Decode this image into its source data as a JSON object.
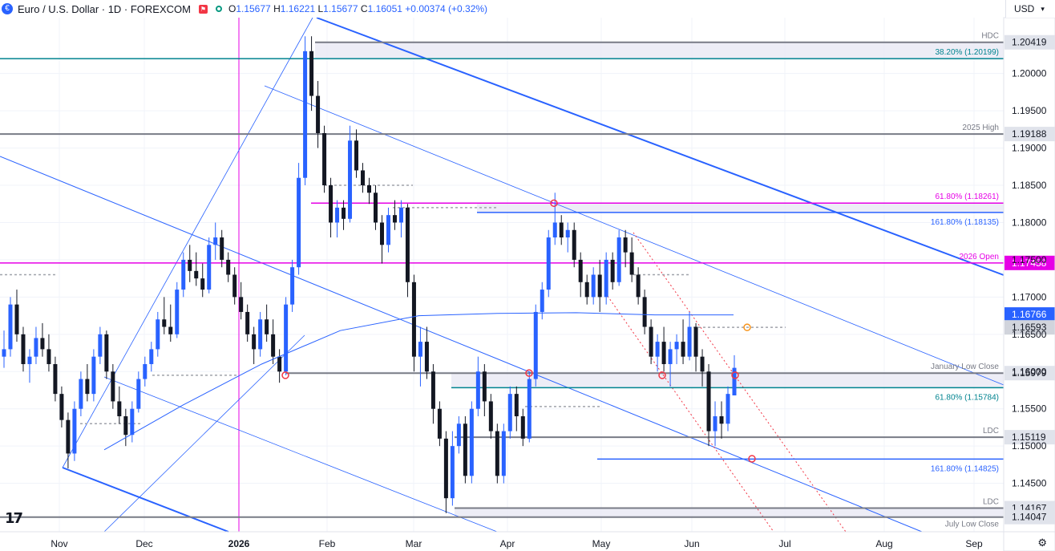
{
  "header": {
    "symbol_icon": "euro-flag-icon",
    "title": "Euro / U.S. Dollar · 1D · FOREXCOM",
    "ohlc": {
      "o_label": "O",
      "o": "1.15677",
      "h_label": "H",
      "h": "1.16221",
      "l_label": "L",
      "l": "1.15677",
      "c_label": "C",
      "c": "1.16051",
      "change": "+0.00374 (+0.32%)"
    }
  },
  "currency": "USD",
  "footer": {
    "settings_icon": "gear-icon"
  },
  "colors": {
    "up": "#2962ff",
    "down": "#131722",
    "magenta": "#e600e6",
    "teal": "#00838f",
    "blue": "#2962ff",
    "gray": "#787b86",
    "orange": "#f7931a",
    "red": "#f23645",
    "zone_fill": "#e8e8f4"
  },
  "chart_data": {
    "type": "candlestick",
    "ylim": [
      1.1385,
      1.2075
    ],
    "x_ticks": [
      "Nov",
      "Dec",
      "2026",
      "Feb",
      "Mar",
      "Apr",
      "May",
      "Jun",
      "Jul",
      "Aug",
      "Sep"
    ],
    "y_ticks": [
      "1.14500",
      "1.15000",
      "1.15500",
      "1.16000",
      "1.16500",
      "1.17000",
      "1.17500",
      "1.18000",
      "1.18500",
      "1.19000",
      "1.19500",
      "1.20000"
    ],
    "levels": [
      {
        "label": "HDC",
        "value": 1.20419,
        "price": "1.20419",
        "style": "gray"
      },
      {
        "label": "38.20% (1.20199)",
        "value": 1.20199,
        "price": "",
        "style": "teal"
      },
      {
        "label": "2025 High",
        "value": 1.19188,
        "price": "1.19188",
        "style": "gray"
      },
      {
        "label": "61.80% (1.18261)",
        "value": 1.18261,
        "price": "",
        "style": "magenta"
      },
      {
        "label": "161.80% (1.18135)",
        "value": 1.18135,
        "price": "",
        "style": "blue"
      },
      {
        "label": "2026 Open",
        "value": 1.17458,
        "price": "1.17458",
        "style": "magenta-badge"
      },
      {
        "label": "January Low Close",
        "value": 1.15979,
        "price": "1.15979",
        "style": "gray"
      },
      {
        "label": "61.80% (1.15784)",
        "value": 1.15784,
        "price": "",
        "style": "teal"
      },
      {
        "label": "LDC",
        "value": 1.15119,
        "price": "1.15119",
        "style": "gray"
      },
      {
        "label": "161.80% (1.14825)",
        "value": 1.14825,
        "price": "",
        "style": "blue"
      },
      {
        "label": "LDC",
        "value": 1.14167,
        "price": "1.14167",
        "style": "gray"
      },
      {
        "label": "July Low Close",
        "value": 1.14047,
        "price": "1.14047",
        "style": "gray"
      }
    ],
    "price_badges": [
      {
        "label": "1.16766",
        "value": 1.16766,
        "color": "#2962ff"
      },
      {
        "label": "1.16593",
        "value": 1.16593,
        "color": "#d1d4dc"
      }
    ],
    "zones": [
      {
        "name": "upper-zone",
        "from": 1.20199,
        "to": 1.20419
      },
      {
        "name": "mid-zone",
        "from": 1.18135,
        "to": 1.18261
      },
      {
        "name": "lower-zone",
        "from": 1.15784,
        "to": 1.15979
      },
      {
        "name": "bottom-zone",
        "from": 1.14047,
        "to": 1.14167
      }
    ],
    "candles": [
      [
        1.162,
        1.1655,
        1.1605,
        1.163
      ],
      [
        1.163,
        1.17,
        1.162,
        1.169
      ],
      [
        1.169,
        1.171,
        1.164,
        1.165
      ],
      [
        1.165,
        1.166,
        1.16,
        1.161
      ],
      [
        1.161,
        1.163,
        1.1585,
        1.162
      ],
      [
        1.162,
        1.166,
        1.161,
        1.1645
      ],
      [
        1.1645,
        1.1665,
        1.162,
        1.163
      ],
      [
        1.163,
        1.165,
        1.16,
        1.161
      ],
      [
        1.161,
        1.162,
        1.156,
        1.157
      ],
      [
        1.157,
        1.158,
        1.1525,
        1.1535
      ],
      [
        1.1535,
        1.1545,
        1.147,
        1.149
      ],
      [
        1.149,
        1.156,
        1.148,
        1.155
      ],
      [
        1.155,
        1.16,
        1.154,
        1.159
      ],
      [
        1.159,
        1.161,
        1.156,
        1.157
      ],
      [
        1.157,
        1.163,
        1.156,
        1.162
      ],
      [
        1.162,
        1.166,
        1.161,
        1.165
      ],
      [
        1.165,
        1.1655,
        1.159,
        1.16
      ],
      [
        1.16,
        1.161,
        1.155,
        1.156
      ],
      [
        1.156,
        1.158,
        1.153,
        1.154
      ],
      [
        1.154,
        1.155,
        1.15,
        1.1515
      ],
      [
        1.1515,
        1.156,
        1.1505,
        1.155
      ],
      [
        1.155,
        1.16,
        1.1545,
        1.159
      ],
      [
        1.159,
        1.162,
        1.158,
        1.161
      ],
      [
        1.161,
        1.164,
        1.16,
        1.163
      ],
      [
        1.163,
        1.168,
        1.162,
        1.167
      ],
      [
        1.167,
        1.17,
        1.165,
        1.166
      ],
      [
        1.166,
        1.169,
        1.164,
        1.165
      ],
      [
        1.165,
        1.172,
        1.1645,
        1.171
      ],
      [
        1.171,
        1.176,
        1.17,
        1.175
      ],
      [
        1.175,
        1.177,
        1.172,
        1.1735
      ],
      [
        1.1735,
        1.176,
        1.1715,
        1.1725
      ],
      [
        1.1725,
        1.1745,
        1.17,
        1.171
      ],
      [
        1.171,
        1.178,
        1.1705,
        1.177
      ],
      [
        1.177,
        1.18,
        1.175,
        1.178
      ],
      [
        1.178,
        1.179,
        1.174,
        1.175
      ],
      [
        1.175,
        1.176,
        1.172,
        1.173
      ],
      [
        1.173,
        1.174,
        1.169,
        1.17
      ],
      [
        1.17,
        1.172,
        1.167,
        1.168
      ],
      [
        1.168,
        1.169,
        1.164,
        1.165
      ],
      [
        1.165,
        1.166,
        1.161,
        1.163
      ],
      [
        1.163,
        1.168,
        1.162,
        1.167
      ],
      [
        1.167,
        1.169,
        1.164,
        1.165
      ],
      [
        1.165,
        1.167,
        1.161,
        1.162
      ],
      [
        1.162,
        1.163,
        1.1585,
        1.16
      ],
      [
        1.16,
        1.17,
        1.1595,
        1.169
      ],
      [
        1.169,
        1.175,
        1.168,
        1.174
      ],
      [
        1.174,
        1.188,
        1.173,
        1.186
      ],
      [
        1.186,
        1.205,
        1.185,
        1.203
      ],
      [
        1.203,
        1.205,
        1.195,
        1.197
      ],
      [
        1.197,
        1.199,
        1.19,
        1.192
      ],
      [
        1.192,
        1.193,
        1.184,
        1.185
      ],
      [
        1.185,
        1.186,
        1.178,
        1.18
      ],
      [
        1.18,
        1.183,
        1.178,
        1.182
      ],
      [
        1.182,
        1.183,
        1.179,
        1.1805
      ],
      [
        1.1805,
        1.193,
        1.18,
        1.191
      ],
      [
        1.191,
        1.1925,
        1.186,
        1.187
      ],
      [
        1.187,
        1.188,
        1.184,
        1.185
      ],
      [
        1.185,
        1.186,
        1.1825,
        1.184
      ],
      [
        1.184,
        1.185,
        1.179,
        1.18
      ],
      [
        1.18,
        1.181,
        1.1745,
        1.177
      ],
      [
        1.177,
        1.182,
        1.176,
        1.181
      ],
      [
        1.181,
        1.183,
        1.179,
        1.18
      ],
      [
        1.18,
        1.183,
        1.178,
        1.182
      ],
      [
        1.182,
        1.1825,
        1.17,
        1.172
      ],
      [
        1.172,
        1.173,
        1.16,
        1.162
      ],
      [
        1.162,
        1.166,
        1.158,
        1.164
      ],
      [
        1.164,
        1.166,
        1.159,
        1.16
      ],
      [
        1.16,
        1.161,
        1.153,
        1.155
      ],
      [
        1.155,
        1.156,
        1.15,
        1.151
      ],
      [
        1.151,
        1.152,
        1.141,
        1.143
      ],
      [
        1.143,
        1.152,
        1.142,
        1.15
      ],
      [
        1.15,
        1.154,
        1.149,
        1.153
      ],
      [
        1.153,
        1.154,
        1.145,
        1.146
      ],
      [
        1.146,
        1.156,
        1.145,
        1.155
      ],
      [
        1.155,
        1.162,
        1.154,
        1.16
      ],
      [
        1.16,
        1.161,
        1.154,
        1.156
      ],
      [
        1.156,
        1.157,
        1.151,
        1.152
      ],
      [
        1.152,
        1.153,
        1.145,
        1.146
      ],
      [
        1.146,
        1.153,
        1.145,
        1.152
      ],
      [
        1.152,
        1.158,
        1.151,
        1.157
      ],
      [
        1.157,
        1.158,
        1.152,
        1.154
      ],
      [
        1.154,
        1.155,
        1.15,
        1.151
      ],
      [
        1.151,
        1.16,
        1.1505,
        1.159
      ],
      [
        1.159,
        1.169,
        1.158,
        1.168
      ],
      [
        1.168,
        1.172,
        1.167,
        1.171
      ],
      [
        1.171,
        1.179,
        1.17,
        1.178
      ],
      [
        1.178,
        1.184,
        1.177,
        1.18
      ],
      [
        1.18,
        1.181,
        1.177,
        1.178
      ],
      [
        1.178,
        1.18,
        1.176,
        1.179
      ],
      [
        1.179,
        1.18,
        1.174,
        1.175
      ],
      [
        1.175,
        1.176,
        1.17,
        1.172
      ],
      [
        1.172,
        1.173,
        1.169,
        1.17
      ],
      [
        1.17,
        1.174,
        1.169,
        1.173
      ],
      [
        1.173,
        1.175,
        1.168,
        1.17
      ],
      [
        1.17,
        1.176,
        1.169,
        1.175
      ],
      [
        1.175,
        1.176,
        1.171,
        1.172
      ],
      [
        1.172,
        1.179,
        1.1715,
        1.178
      ],
      [
        1.178,
        1.179,
        1.174,
        1.176
      ],
      [
        1.176,
        1.178,
        1.172,
        1.173
      ],
      [
        1.173,
        1.174,
        1.169,
        1.17
      ],
      [
        1.17,
        1.171,
        1.165,
        1.166
      ],
      [
        1.166,
        1.167,
        1.161,
        1.162
      ],
      [
        1.162,
        1.165,
        1.16,
        1.164
      ],
      [
        1.164,
        1.166,
        1.16,
        1.161
      ],
      [
        1.161,
        1.164,
        1.158,
        1.163
      ],
      [
        1.163,
        1.165,
        1.161,
        1.164
      ],
      [
        1.164,
        1.167,
        1.161,
        1.162
      ],
      [
        1.162,
        1.168,
        1.1615,
        1.166
      ],
      [
        1.166,
        1.1665,
        1.16,
        1.162
      ],
      [
        1.162,
        1.163,
        1.158,
        1.16
      ],
      [
        1.16,
        1.161,
        1.15,
        1.152
      ],
      [
        1.152,
        1.156,
        1.15,
        1.154
      ],
      [
        1.154,
        1.156,
        1.151,
        1.153
      ],
      [
        1.153,
        1.158,
        1.152,
        1.157
      ],
      [
        1.1568,
        1.1622,
        1.1568,
        1.1605
      ]
    ],
    "moving_average": [
      1.1495,
      1.1555,
      1.161,
      1.1655,
      1.1675,
      1.1678,
      1.1679,
      1.1676,
      1.1676
    ],
    "markers": [
      {
        "type": "circle",
        "color": "red",
        "value": 1.1595
      },
      {
        "type": "circle",
        "color": "red",
        "value": 1.1826
      },
      {
        "type": "circle",
        "color": "red",
        "value": 1.1598
      },
      {
        "type": "circle",
        "color": "red",
        "value": 1.1595
      },
      {
        "type": "circle",
        "color": "red",
        "value": 1.1483
      },
      {
        "type": "circle",
        "color": "orange",
        "value": 1.16593
      }
    ]
  }
}
